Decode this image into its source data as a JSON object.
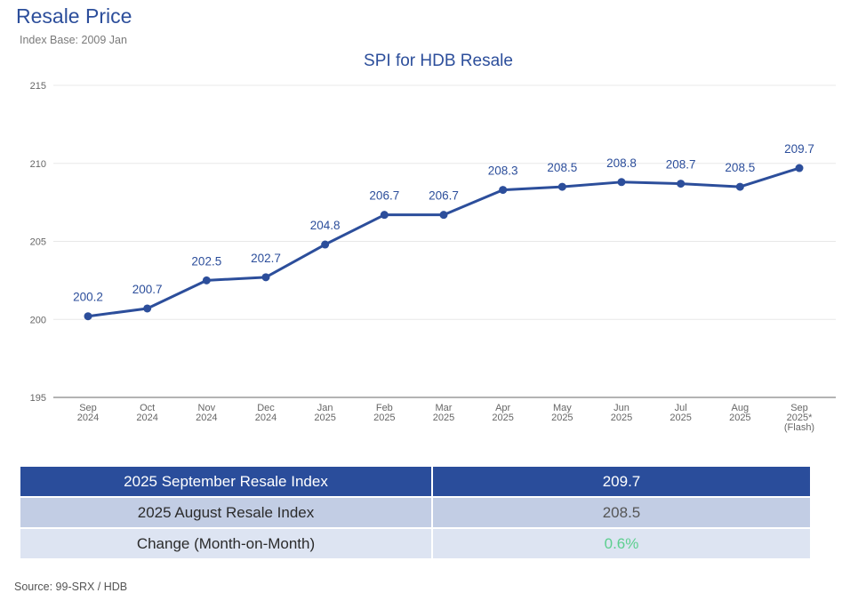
{
  "page": {
    "title": "Resale Price",
    "subtitle": "Index Base: 2009 Jan",
    "source": "Source: 99-SRX / HDB"
  },
  "chart_data": {
    "type": "line",
    "title": "SPI for HDB Resale",
    "xlabel": "",
    "ylabel": "",
    "ylim": [
      195,
      215
    ],
    "yticks": [
      195,
      200,
      205,
      210,
      215
    ],
    "grid": true,
    "legend": "none",
    "categories": [
      [
        "Sep",
        "2024"
      ],
      [
        "Oct",
        "2024"
      ],
      [
        "Nov",
        "2024"
      ],
      [
        "Dec",
        "2024"
      ],
      [
        "Jan",
        "2025"
      ],
      [
        "Feb",
        "2025"
      ],
      [
        "Mar",
        "2025"
      ],
      [
        "Apr",
        "2025"
      ],
      [
        "May",
        "2025"
      ],
      [
        "Jun",
        "2025"
      ],
      [
        "Jul",
        "2025"
      ],
      [
        "Aug",
        "2025"
      ],
      [
        "Sep",
        "2025*",
        "(Flash)"
      ]
    ],
    "series": [
      {
        "values": [
          200.2,
          200.7,
          202.5,
          202.7,
          204.8,
          206.7,
          206.7,
          208.3,
          208.5,
          208.8,
          208.7,
          208.5,
          209.7
        ],
        "labels": [
          "200.2",
          "200.7",
          "202.5",
          "202.7",
          "204.8",
          "206.7",
          "206.7",
          "208.3",
          "208.5",
          "208.8",
          "208.7",
          "208.5",
          "209.7"
        ],
        "color": "#2c4e9b"
      }
    ]
  },
  "table": {
    "rows": [
      {
        "label": "2025 September Resale Index",
        "value": "209.7"
      },
      {
        "label": "2025 August Resale Index",
        "value": "208.5"
      },
      {
        "label": "Change (Month-on-Month)",
        "value": "0.6%"
      }
    ],
    "change_color": "#5ccf8f"
  },
  "colors": {
    "accent": "#2c4e9b",
    "grid": "#e8e8e8",
    "axis": "#9a9a9a",
    "tick_text": "#666666",
    "label_text": "#2c4e9b"
  }
}
